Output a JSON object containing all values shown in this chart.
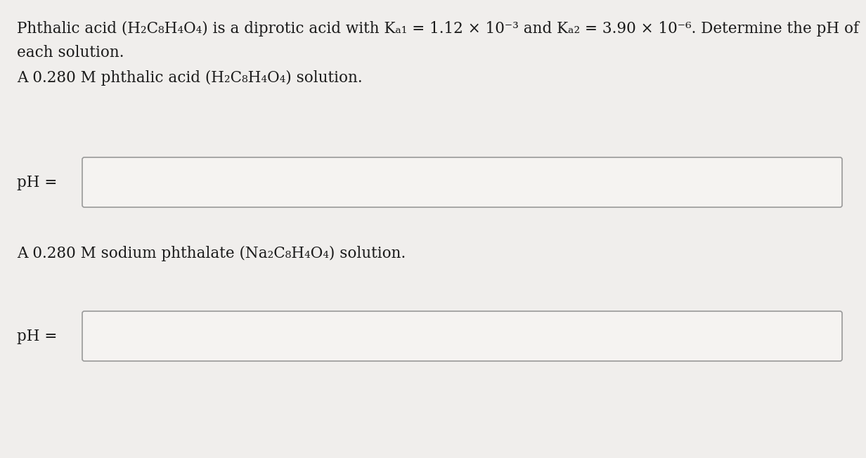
{
  "background_color": "#f0eeec",
  "text_color": "#1a1a1a",
  "line1": "Phthalic acid (H₂C₈H₄O₄) is a diprotic acid with Kₐ₁ = 1.12 × 10⁻³ and Kₐ₂ = 3.90 × 10⁻⁶. Determine the pH of",
  "line2": "each solution.",
  "line3": "A 0.280 M phthalic acid (H₂C₈H₄O₄) solution.",
  "line4": "A 0.280 M sodium phthalate (Na₂C₈H₄O₄) solution.",
  "ph_label": "pH =",
  "box_facecolor": "#f5f3f1",
  "box_edgecolor": "#999999",
  "font_size_main": 15.5,
  "font_size_label": 15.5,
  "fig_width": 12.0,
  "fig_height": 6.33
}
